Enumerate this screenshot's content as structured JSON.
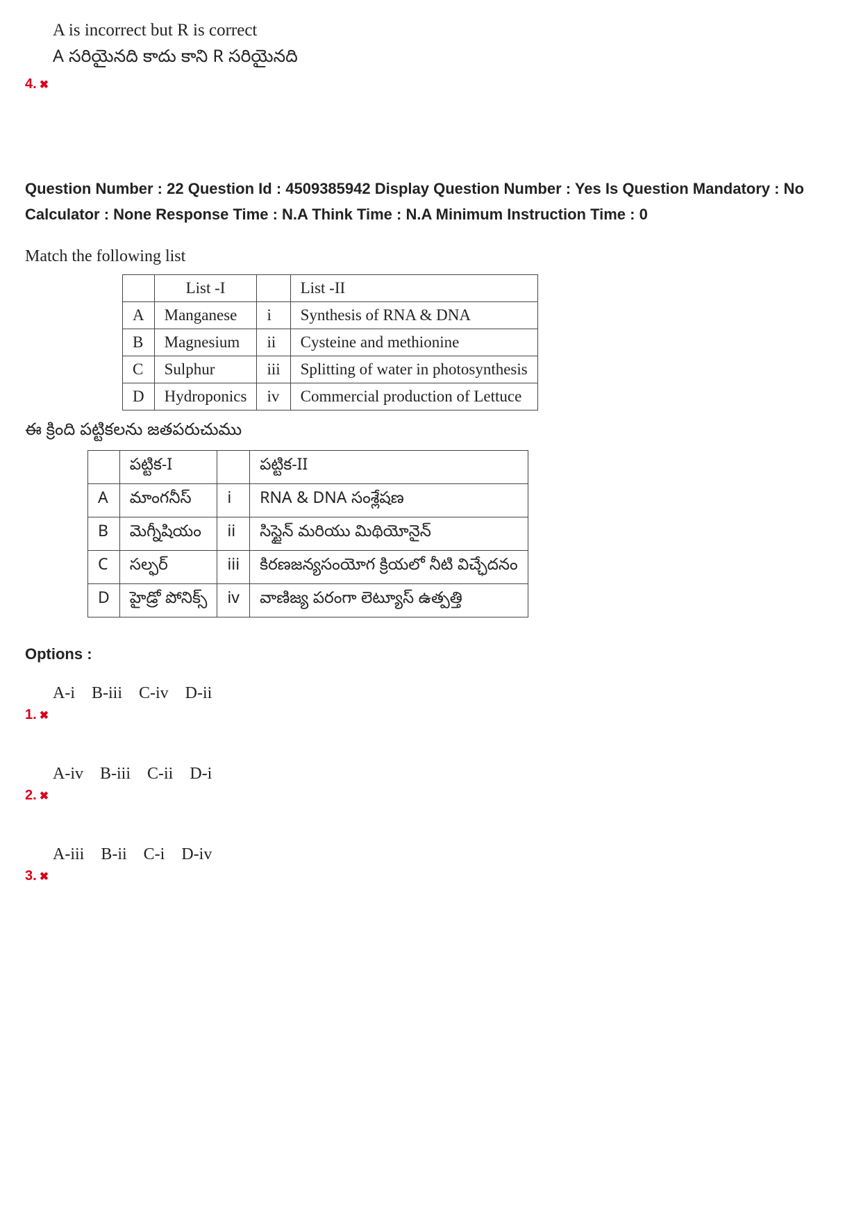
{
  "previous_option": {
    "number": "4.",
    "en": "A is incorrect but R is correct",
    "te": "A సరియైనది కాదు కాని R సరియైనది"
  },
  "question_meta": "Question Number : 22 Question Id : 4509385942 Display Question Number : Yes Is Question Mandatory : No Calculator : None Response Time : N.A Think Time : N.A Minimum Instruction Time : 0",
  "question_en": "Match the following list",
  "question_te": "ఈ క్రింది పట్టికలను జతపరుచుము",
  "table_en": {
    "headers": [
      "",
      "List -I",
      "",
      "List -II"
    ],
    "rows": [
      [
        "A",
        "Manganese",
        "i",
        "Synthesis of RNA & DNA"
      ],
      [
        "B",
        "Magnesium",
        "ii",
        "Cysteine and methionine"
      ],
      [
        "C",
        "Sulphur",
        "iii",
        "Splitting of water in photosynthesis"
      ],
      [
        "D",
        "Hydroponics",
        "iv",
        "Commercial production of Lettuce"
      ]
    ]
  },
  "table_te": {
    "headers": [
      "",
      "పట్టిక-I",
      "",
      "పట్టిక-II"
    ],
    "rows": [
      [
        "A",
        "మాంగనీస్",
        "i",
        "RNA & DNA సంశ్లేషణ"
      ],
      [
        "B",
        "మెగ్నీషియం",
        "ii",
        "సిస్టైన్ మరియు మిథియోనైన్"
      ],
      [
        "C",
        "సల్ఫర్",
        "iii",
        "కిరణజన్యసంయోగ క్రియలో నీటి విచ్ఛేదనం"
      ],
      [
        "D",
        "హైడ్రో పోనిక్స్",
        "iv",
        "వాణిజ్య పరంగా లెట్యూస్  ఉత్పత్తి"
      ]
    ]
  },
  "options_label": "Options :",
  "options": [
    {
      "num": "1.",
      "text": "A-i    B-iii   C-iv   D-ii"
    },
    {
      "num": "2.",
      "text": "A-iv   B-iii   C-ii    D-i"
    },
    {
      "num": "3.",
      "text": "A-iii   B-ii    C-i    D-iv"
    }
  ]
}
